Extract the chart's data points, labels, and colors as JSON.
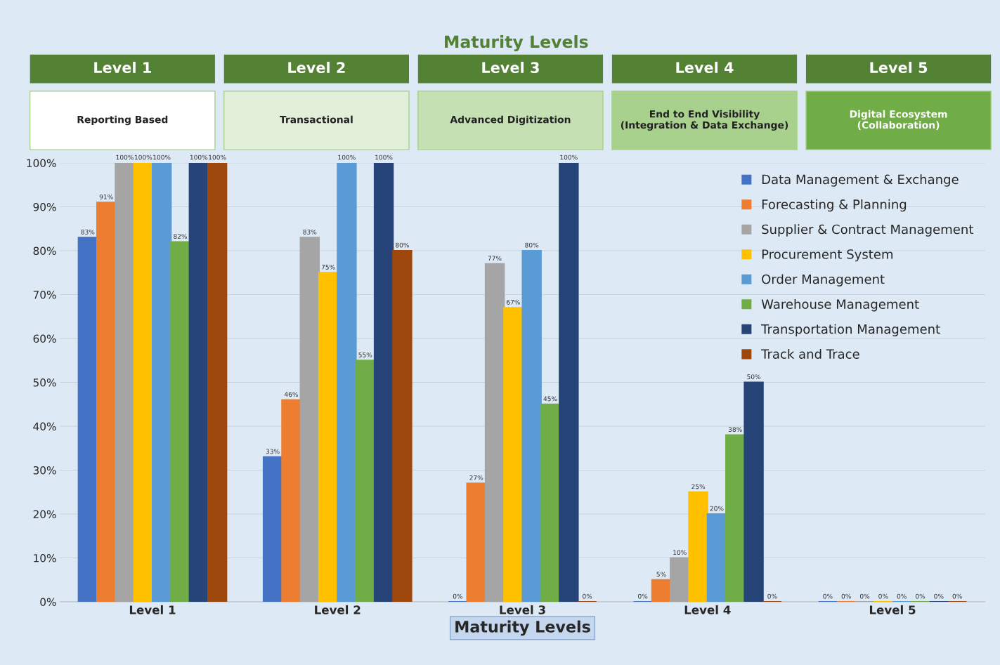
{
  "chart_data": {
    "type": "bar",
    "title": "Maturity Levels",
    "xlabel": "Maturity Levels",
    "annotations": [
      "Level 1",
      "Level 2",
      "Level 3",
      "Level 4",
      "Level 5",
      "Reporting Based",
      "Transactional",
      "Advanced Digitization",
      "End to End Visibility\n(Integration & Data Exchange)",
      "Digital Ecosystem\n(Collaboration)"
    ],
    "categories": [
      "Level 1",
      "Level 2",
      "Level 3",
      "Level 4",
      "Level 5"
    ],
    "series": [
      {
        "name": "Data Management & Exchange",
        "color": "#4472c4",
        "values": [
          83,
          33,
          0,
          0,
          0
        ],
        "value_labels": [
          "83%",
          "33%",
          "0%",
          "0%",
          "0%"
        ]
      },
      {
        "name": "Forecasting & Planning",
        "color": "#ed7d31",
        "values": [
          91,
          46,
          27,
          5,
          0
        ],
        "value_labels": [
          "91%",
          "46%",
          "27%",
          "5%",
          "0%"
        ]
      },
      {
        "name": "Supplier & Contract Management",
        "color": "#a5a5a5",
        "values": [
          100,
          83,
          77,
          10,
          0
        ],
        "value_labels": [
          "100%",
          "83%",
          "77%",
          "10%",
          "0%"
        ]
      },
      {
        "name": "Procurement System",
        "color": "#ffc000",
        "values": [
          100,
          75,
          67,
          25,
          0
        ],
        "value_labels": [
          "100%",
          "75%",
          "67%",
          "25%",
          "0%"
        ]
      },
      {
        "name": "Order Management",
        "color": "#5b9bd5",
        "values": [
          100,
          100,
          80,
          20,
          0
        ],
        "value_labels": [
          "100%",
          "100%",
          "80%",
          "20%",
          "0%"
        ]
      },
      {
        "name": "Warehouse Management",
        "color": "#70ad47",
        "values": [
          82,
          55,
          45,
          38,
          0
        ],
        "value_labels": [
          "82%",
          "55%",
          "45%",
          "38%",
          "0%"
        ]
      },
      {
        "name": "Transportation Management",
        "color": "#264478",
        "values": [
          100,
          100,
          100,
          50,
          0
        ],
        "value_labels": [
          "100%",
          "100%",
          "100%",
          "50%",
          "0%"
        ]
      },
      {
        "name": "Track and Trace",
        "color": "#9e480e",
        "values": [
          100,
          80,
          0,
          0,
          0
        ],
        "value_labels": [
          "100%",
          "80%",
          "0%",
          "0%",
          "0%"
        ]
      }
    ],
    "ylim": [
      0,
      100
    ],
    "yticks": [
      {
        "value": 0,
        "label": "0%"
      },
      {
        "value": 10,
        "label": "10%"
      },
      {
        "value": 20,
        "label": "20%"
      },
      {
        "value": 30,
        "label": "30%"
      },
      {
        "value": 40,
        "label": "40%"
      },
      {
        "value": 50,
        "label": "50%"
      },
      {
        "value": 60,
        "label": "60%"
      },
      {
        "value": 70,
        "label": "70%"
      },
      {
        "value": 80,
        "label": "80%"
      },
      {
        "value": 90,
        "label": "90%"
      },
      {
        "value": 100,
        "label": "100%"
      }
    ],
    "grid": "y",
    "legend": "upper right"
  }
}
